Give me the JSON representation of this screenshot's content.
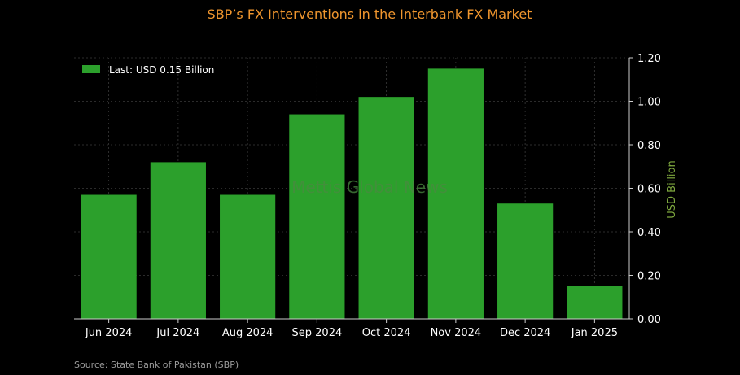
{
  "chart_data": {
    "type": "bar",
    "title": "SBP’s FX Interventions in the Interbank FX Market",
    "categories": [
      "Jun 2024",
      "Jul 2024",
      "Aug 2024",
      "Sep 2024",
      "Oct 2024",
      "Nov 2024",
      "Dec 2024",
      "Jan 2025"
    ],
    "values": [
      0.57,
      0.72,
      0.57,
      0.94,
      1.02,
      1.15,
      0.53,
      0.15
    ],
    "ylabel": "USD Billion",
    "ylim": [
      0,
      1.2
    ],
    "yticks": [
      "0.00",
      "0.20",
      "0.40",
      "0.60",
      "0.80",
      "1.00",
      "1.20"
    ],
    "ytick_values": [
      0,
      0.2,
      0.4,
      0.6,
      0.8,
      1.0,
      1.2
    ],
    "y_axis_side": "right",
    "grid": true,
    "legend": {
      "label": "Last: USD 0.15 Billion",
      "position": "top-left"
    },
    "bar_color": "#2ca02c",
    "title_color": "#f0962e",
    "ylabel_color": "#7ea83e",
    "background": "#000000"
  },
  "watermark": "Mettis Global News",
  "source": "Source: State Bank of Pakistan (SBP)"
}
